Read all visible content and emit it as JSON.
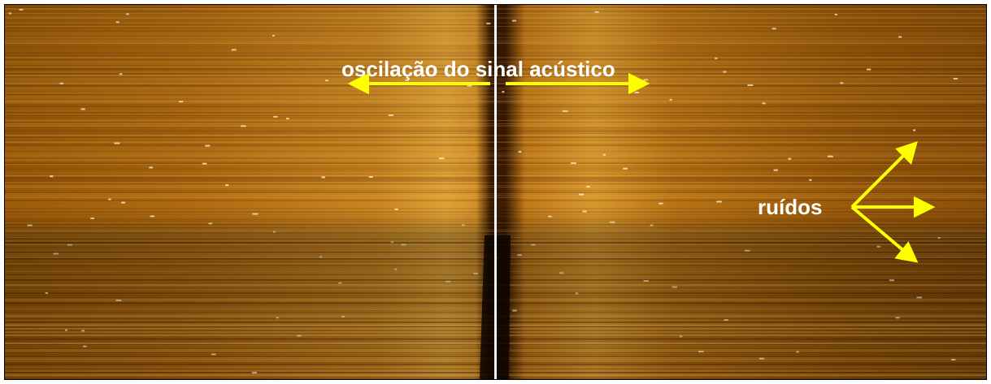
{
  "annotations": {
    "oscillation": "oscilação do sinal acústico",
    "noise": "ruídos"
  }
}
